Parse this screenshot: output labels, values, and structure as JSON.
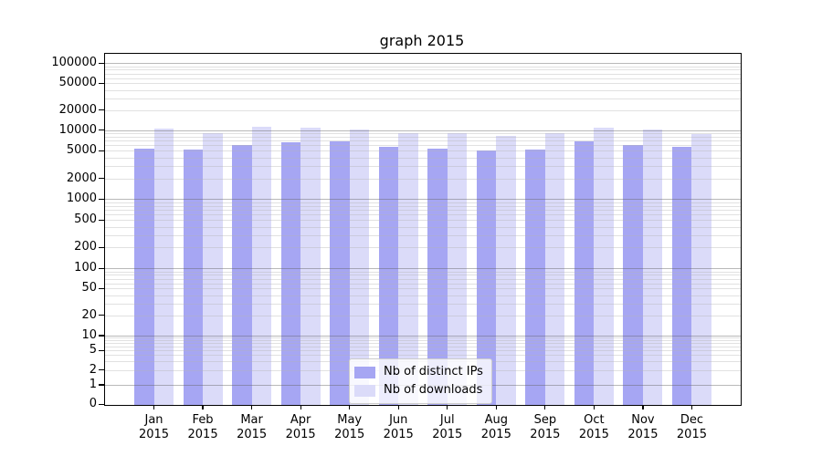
{
  "title": "graph 2015",
  "legend": {
    "items": [
      {
        "label": "Nb of distinct IPs",
        "color": "#a6a6f3"
      },
      {
        "label": "Nb of downloads",
        "color": "#dbdbf9"
      }
    ]
  },
  "axis": {
    "y_tick_labels": [
      "0",
      "1",
      "2",
      "5",
      "10",
      "20",
      "50",
      "100",
      "200",
      "500",
      "1000",
      "2000",
      "5000",
      "10000",
      "20000",
      "50000",
      "100000"
    ],
    "x_year_label": "2015"
  },
  "chart_data": {
    "type": "bar",
    "title": "graph 2015",
    "categories": [
      "Jan",
      "Feb",
      "Mar",
      "Apr",
      "May",
      "Jun",
      "Jul",
      "Aug",
      "Sep",
      "Oct",
      "Nov",
      "Dec"
    ],
    "category_year": "2015",
    "series": [
      {
        "name": "Nb of distinct IPs",
        "color": "#a6a6f3",
        "values": [
          5400,
          5300,
          6100,
          6700,
          6900,
          5700,
          5400,
          5000,
          5200,
          6800,
          6100,
          5700
        ]
      },
      {
        "name": "Nb of downloads",
        "color": "#dbdbf9",
        "values": [
          10400,
          9100,
          11200,
          10800,
          10300,
          9000,
          9000,
          8300,
          9000,
          10800,
          10200,
          8800
        ]
      }
    ],
    "yscale": "symlog",
    "y_ticks": [
      0,
      1,
      2,
      5,
      10,
      20,
      50,
      100,
      200,
      500,
      1000,
      2000,
      5000,
      10000,
      20000,
      50000,
      100000
    ],
    "ylim": [
      0,
      140000
    ],
    "xlabel": "",
    "ylabel": "",
    "grid": true,
    "grid_above_bars": true,
    "legend_position": "lower center"
  }
}
